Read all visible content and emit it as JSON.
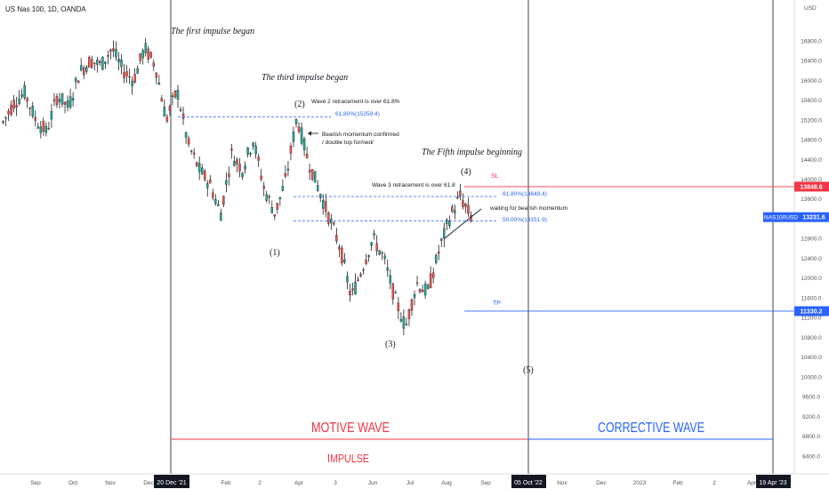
{
  "header": {
    "symbol_title": "US Nas 100, 1D, OANDA"
  },
  "colors": {
    "bull": "#26a69a",
    "bear": "#ef5350",
    "candle_wick": "#000000",
    "resistance": "#f23645",
    "support_blue": "#2962ff",
    "axis_text": "#555555",
    "price_tag_dark": "#131722",
    "badge_blue": "#2962ff"
  },
  "chart_data": {
    "type": "candlestick",
    "title": "US Nas 100, 1D, OANDA",
    "y_axis": {
      "unit_label": "USD",
      "ticks": [
        "16800.0",
        "16400.0",
        "16000.0",
        "15600.0",
        "15200.0",
        "14800.0",
        "14400.0",
        "14000.0",
        "13600.0",
        "13200.0",
        "12800.0",
        "12400.0",
        "12000.0",
        "11600.0",
        "11200.0",
        "10800.0",
        "10400.0",
        "10000.0",
        "9600.0",
        "9200.0",
        "8800.0",
        "8400.0"
      ],
      "ylim": [
        8200,
        17300
      ]
    },
    "x_axis": {
      "ticks": [
        "Sep",
        "Oct",
        "Nov",
        "Dec",
        "Feb",
        "2",
        "Apr",
        "3",
        "Jun",
        "Jul",
        "Aug",
        "Sep",
        "Nov",
        "Dec",
        "2023",
        "Feb",
        "2",
        "Apr"
      ],
      "highlight_dates": [
        "20 Dec '21",
        "05 Oct '22",
        "19 Apr '23"
      ]
    },
    "price_path": [
      [
        15400,
        15150
      ],
      [
        15250,
        15550
      ],
      [
        15600,
        15750
      ],
      [
        15800,
        15200
      ],
      [
        15250,
        14950
      ],
      [
        14900,
        15700
      ],
      [
        15650,
        15450
      ],
      [
        15500,
        16150
      ],
      [
        16100,
        16400
      ],
      [
        16400,
        16300
      ],
      [
        16350,
        16650
      ],
      [
        16500,
        16200
      ],
      [
        16300,
        16000
      ],
      [
        16100,
        16650
      ],
      [
        16600,
        16300
      ],
      [
        16200,
        15200
      ],
      [
        15300,
        15800
      ],
      [
        15700,
        14700
      ],
      [
        14800,
        14200
      ],
      [
        14250,
        13900
      ],
      [
        14000,
        13300
      ],
      [
        13400,
        14500
      ],
      [
        14500,
        14200
      ],
      [
        14200,
        14800
      ],
      [
        14700,
        13800
      ],
      [
        13800,
        13300
      ],
      [
        13300,
        14000
      ],
      [
        14100,
        15250
      ],
      [
        15200,
        14400
      ],
      [
        14300,
        13800
      ],
      [
        13800,
        13200
      ],
      [
        13200,
        12600
      ],
      [
        12600,
        11600
      ],
      [
        11600,
        12200
      ],
      [
        12200,
        12800
      ],
      [
        12800,
        12400
      ],
      [
        12400,
        11600
      ],
      [
        11600,
        11000
      ],
      [
        11100,
        11900
      ],
      [
        11900,
        11700
      ],
      [
        11700,
        12500
      ],
      [
        12500,
        13200
      ],
      [
        13200,
        13650
      ],
      [
        13650,
        13231.6
      ]
    ],
    "current_price": "13231.6",
    "series": [
      {
        "name": "NAS100USD",
        "last": "13231.6"
      }
    ],
    "price_labels": {
      "sl": "13848.6",
      "current_name": "NAS100USD",
      "current": "13231.6",
      "tp": "11330.2"
    },
    "levels": {
      "fib_618_wave2": 15259.4,
      "fib_618_wave4": 13649.4,
      "fib_500_wave4": 13151.9,
      "sl": 13848.6,
      "tp": 11330.2
    },
    "annotations": {
      "first_impulse": "The first impulse began",
      "third_impulse": "The third impulse began",
      "fifth_impulse": "The Fifth impulse beginning",
      "wave2_note": "Wave 2 retracement is over 61.8%",
      "fib_618_wave2_label": "61.80%(15259.4)",
      "bearish_note_1": "Bearish momentum confirmed",
      "bearish_note_2": "/ double top formed/",
      "wave3_note": "Wave 3 retracement is over 61.8",
      "fib_618_wave4_label": "61.80%(13649.4)",
      "fib_500_wave4_label": "50.00%(13151.9)",
      "waiting_note": "waiting for bearish momentum",
      "sl_label": "SL",
      "tp_label": "TP",
      "wave1": "(1)",
      "wave2": "(2)",
      "wave3": "(3)",
      "wave4": "(4)",
      "wave5": "(5)",
      "motive_wave": "MOTIVE WAVE",
      "corrective_wave": "CORRECTIVE WAVE",
      "impulse": "IMPULSE"
    }
  }
}
